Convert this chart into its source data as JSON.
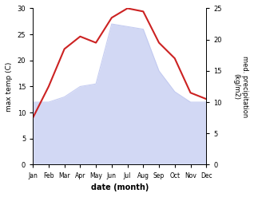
{
  "months": [
    "Jan",
    "Feb",
    "Mar",
    "Apr",
    "May",
    "Jun",
    "Jul",
    "Aug",
    "Sep",
    "Oct",
    "Nov",
    "Dec"
  ],
  "month_positions": [
    0,
    1,
    2,
    3,
    4,
    5,
    6,
    7,
    8,
    9,
    10,
    11
  ],
  "temperature": [
    12.0,
    12.0,
    13.0,
    15.0,
    15.5,
    27.0,
    26.5,
    26.0,
    18.0,
    14.0,
    12.0,
    12.0
  ],
  "precipitation": [
    7.5,
    12.5,
    18.5,
    20.5,
    19.5,
    23.5,
    25.0,
    24.5,
    19.5,
    17.0,
    11.5,
    10.5
  ],
  "temp_fill_color": "#c0c8f0",
  "temp_fill_alpha": 0.7,
  "precip_color": "#cc2222",
  "precip_linewidth": 1.5,
  "ylabel_left": "max temp (C)",
  "ylabel_right": "med. precipitation\n(kg/m2)",
  "xlabel": "date (month)",
  "ylim_left": [
    0,
    30
  ],
  "ylim_right": [
    0,
    25
  ],
  "yticks_left": [
    0,
    5,
    10,
    15,
    20,
    25,
    30
  ],
  "yticks_right": [
    0,
    5,
    10,
    15,
    20,
    25
  ],
  "background_color": "#ffffff",
  "figsize": [
    3.18,
    2.47
  ],
  "dpi": 100
}
